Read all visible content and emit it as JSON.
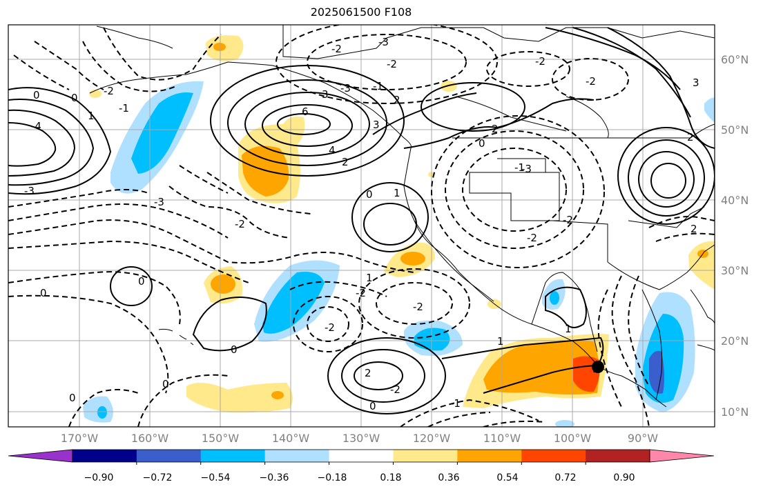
{
  "title": "2025061500 F108",
  "map": {
    "lat_labels": [
      "60°N",
      "50°N",
      "40°N",
      "30°N",
      "20°N",
      "10°N"
    ],
    "lon_labels": [
      "170°W",
      "160°W",
      "150°W",
      "140°W",
      "130°W",
      "120°W",
      "110°W",
      "100°W",
      "90°W"
    ],
    "contour_labels": [
      "-3",
      "-2",
      "-2",
      "-2",
      "-2",
      "-1",
      "0",
      "0",
      "-2",
      "-1",
      "1",
      "-4",
      "3",
      "6",
      "4",
      "2",
      "-3",
      "3",
      "2",
      "0",
      "-1",
      "-3",
      "-2",
      "-3",
      "0",
      "1",
      "2",
      "-2",
      "2",
      "1",
      "-2",
      "-2",
      "0",
      "0",
      "0",
      "-2",
      "2",
      "-2",
      "1",
      "-1",
      "0",
      "1",
      "0",
      "2",
      "-2",
      "-3",
      "0",
      "3"
    ],
    "marker": "filled black circle"
  },
  "colorbar": {
    "tick_labels": [
      "−0.90",
      "−0.72",
      "−0.54",
      "−0.36",
      "−0.18",
      "0.18",
      "0.36",
      "0.54",
      "0.72",
      "0.90"
    ],
    "colors": [
      "#9932cc",
      "#00008b",
      "#3a5fcd",
      "#00bfff",
      "#b0e0ff",
      "#ffffff",
      "#ffe98a",
      "#ffa500",
      "#ff4500",
      "#b22222",
      "#ff88aa"
    ]
  }
}
